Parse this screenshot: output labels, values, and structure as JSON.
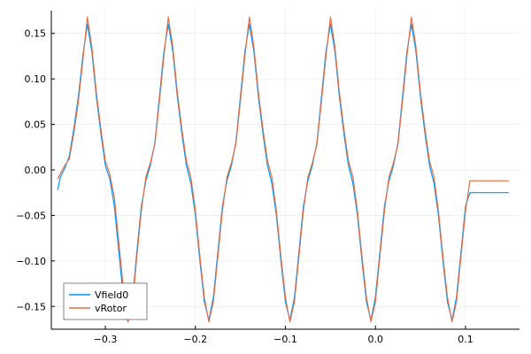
{
  "chart_data": {
    "type": "line",
    "xlim": [
      -0.36,
      0.16
    ],
    "ylim": [
      -0.175,
      0.175
    ],
    "xticks": [
      -0.3,
      -0.2,
      -0.1,
      0.0,
      0.1
    ],
    "xtick_labels": [
      "−0.3",
      "−0.2",
      "−0.1",
      "0.0",
      "0.1"
    ],
    "yticks": [
      -0.15,
      -0.1,
      -0.05,
      0.0,
      0.05,
      0.1,
      0.15
    ],
    "ytick_labels": [
      "−0.15",
      "−0.10",
      "−0.05",
      "0.00",
      "0.05",
      "0.10",
      "0.15"
    ],
    "grid": true,
    "legend_position": "bottom-left",
    "series": [
      {
        "name": "Vfield0",
        "color": "#009AFA",
        "x": [
          -0.353,
          -0.35,
          -0.345,
          -0.34,
          -0.335,
          -0.33,
          -0.325,
          -0.32,
          -0.315,
          -0.31,
          -0.305,
          -0.3,
          -0.295,
          -0.29,
          -0.285,
          -0.28,
          -0.275,
          -0.27,
          -0.265,
          -0.26,
          -0.255,
          -0.25,
          -0.245,
          -0.24,
          -0.235,
          -0.23,
          -0.225,
          -0.22,
          -0.215,
          -0.21,
          -0.205,
          -0.2,
          -0.195,
          -0.19,
          -0.185,
          -0.18,
          -0.175,
          -0.17,
          -0.165,
          -0.16,
          -0.155,
          -0.15,
          -0.145,
          -0.14,
          -0.135,
          -0.13,
          -0.125,
          -0.12,
          -0.115,
          -0.11,
          -0.105,
          -0.1,
          -0.095,
          -0.09,
          -0.085,
          -0.08,
          -0.075,
          -0.07,
          -0.065,
          -0.06,
          -0.055,
          -0.05,
          -0.045,
          -0.04,
          -0.035,
          -0.03,
          -0.025,
          -0.02,
          -0.015,
          -0.01,
          -0.005,
          0.0,
          0.005,
          0.01,
          0.015,
          0.02,
          0.025,
          0.03,
          0.035,
          0.04,
          0.045,
          0.05,
          0.055,
          0.06,
          0.065,
          0.07,
          0.075,
          0.08,
          0.085,
          0.09,
          0.095,
          0.1,
          0.105,
          0.11,
          0.115,
          0.12,
          0.125,
          0.13,
          0.135,
          0.14,
          0.145,
          0.148
        ],
        "y": [
          -0.022,
          -0.008,
          0.002,
          0.015,
          0.045,
          0.08,
          0.125,
          0.16,
          0.13,
          0.08,
          0.04,
          0.005,
          -0.01,
          -0.04,
          -0.09,
          -0.14,
          -0.165,
          -0.145,
          -0.09,
          -0.04,
          -0.012,
          0.005,
          0.03,
          0.08,
          0.13,
          0.16,
          0.13,
          0.08,
          0.04,
          0.005,
          -0.015,
          -0.05,
          -0.1,
          -0.145,
          -0.165,
          -0.14,
          -0.09,
          -0.04,
          -0.012,
          0.005,
          0.03,
          0.08,
          0.13,
          0.16,
          0.13,
          0.08,
          0.04,
          0.005,
          -0.015,
          -0.05,
          -0.1,
          -0.145,
          -0.165,
          -0.14,
          -0.09,
          -0.04,
          -0.012,
          0.005,
          0.03,
          0.08,
          0.13,
          0.16,
          0.13,
          0.08,
          0.04,
          0.005,
          -0.015,
          -0.05,
          -0.1,
          -0.145,
          -0.165,
          -0.14,
          -0.09,
          -0.04,
          -0.012,
          0.005,
          0.03,
          0.08,
          0.13,
          0.16,
          0.13,
          0.08,
          0.04,
          0.005,
          -0.015,
          -0.05,
          -0.1,
          -0.145,
          -0.165,
          -0.14,
          -0.09,
          -0.04,
          -0.025,
          -0.025,
          -0.025,
          -0.025,
          -0.025,
          -0.025,
          -0.025,
          -0.025,
          -0.025,
          -0.025
        ]
      },
      {
        "name": "vRotor",
        "color": "#E26F46",
        "x": [
          -0.353,
          -0.35,
          -0.345,
          -0.34,
          -0.335,
          -0.33,
          -0.325,
          -0.32,
          -0.315,
          -0.31,
          -0.305,
          -0.3,
          -0.295,
          -0.29,
          -0.285,
          -0.28,
          -0.275,
          -0.27,
          -0.265,
          -0.26,
          -0.255,
          -0.25,
          -0.245,
          -0.24,
          -0.235,
          -0.23,
          -0.225,
          -0.22,
          -0.215,
          -0.21,
          -0.205,
          -0.2,
          -0.195,
          -0.19,
          -0.185,
          -0.18,
          -0.175,
          -0.17,
          -0.165,
          -0.16,
          -0.155,
          -0.15,
          -0.145,
          -0.14,
          -0.135,
          -0.13,
          -0.125,
          -0.12,
          -0.115,
          -0.11,
          -0.105,
          -0.1,
          -0.095,
          -0.09,
          -0.085,
          -0.08,
          -0.075,
          -0.07,
          -0.065,
          -0.06,
          -0.055,
          -0.05,
          -0.045,
          -0.04,
          -0.035,
          -0.03,
          -0.025,
          -0.02,
          -0.015,
          -0.01,
          -0.005,
          0.0,
          0.005,
          0.01,
          0.015,
          0.02,
          0.025,
          0.03,
          0.035,
          0.04,
          0.045,
          0.05,
          0.055,
          0.06,
          0.065,
          0.07,
          0.075,
          0.08,
          0.085,
          0.09,
          0.095,
          0.1,
          0.105,
          0.11,
          0.115,
          0.12,
          0.125,
          0.13,
          0.135,
          0.14,
          0.145,
          0.148
        ],
        "y": [
          -0.01,
          -0.004,
          0.005,
          0.012,
          0.04,
          0.075,
          0.12,
          0.168,
          0.135,
          0.085,
          0.045,
          0.01,
          -0.005,
          -0.03,
          -0.08,
          -0.13,
          -0.167,
          -0.15,
          -0.095,
          -0.045,
          -0.008,
          0.008,
          0.028,
          0.075,
          0.125,
          0.168,
          0.135,
          0.085,
          0.045,
          0.01,
          -0.008,
          -0.045,
          -0.095,
          -0.14,
          -0.167,
          -0.145,
          -0.095,
          -0.045,
          -0.008,
          0.008,
          0.028,
          0.075,
          0.125,
          0.168,
          0.135,
          0.085,
          0.045,
          0.01,
          -0.008,
          -0.045,
          -0.095,
          -0.14,
          -0.167,
          -0.145,
          -0.095,
          -0.045,
          -0.008,
          0.008,
          0.028,
          0.075,
          0.125,
          0.168,
          0.135,
          0.085,
          0.045,
          0.01,
          -0.008,
          -0.045,
          -0.095,
          -0.14,
          -0.167,
          -0.145,
          -0.095,
          -0.045,
          -0.008,
          0.008,
          0.028,
          0.075,
          0.125,
          0.168,
          0.135,
          0.085,
          0.045,
          0.01,
          -0.008,
          -0.045,
          -0.095,
          -0.14,
          -0.167,
          -0.145,
          -0.095,
          -0.045,
          -0.012,
          -0.012,
          -0.012,
          -0.012,
          -0.012,
          -0.012,
          -0.012,
          -0.012,
          -0.012,
          -0.012
        ]
      }
    ]
  }
}
